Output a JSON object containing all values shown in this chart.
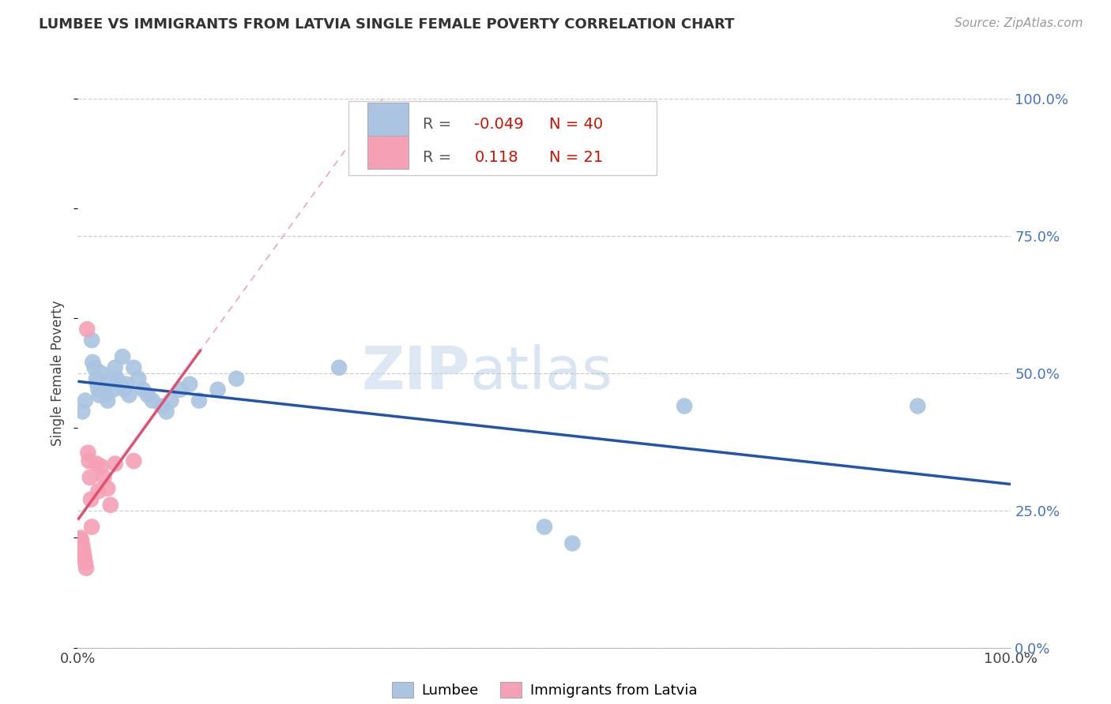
{
  "title": "LUMBEE VS IMMIGRANTS FROM LATVIA SINGLE FEMALE POVERTY CORRELATION CHART",
  "source": "Source: ZipAtlas.com",
  "ylabel": "Single Female Poverty",
  "xlim": [
    0.0,
    1.0
  ],
  "ylim": [
    0.0,
    1.0
  ],
  "ytick_labels": [
    "0.0%",
    "25.0%",
    "50.0%",
    "75.0%",
    "100.0%"
  ],
  "ytick_positions": [
    0.0,
    0.25,
    0.5,
    0.75,
    1.0
  ],
  "lumbee_color": "#aac4e2",
  "latvia_color": "#f5a0b5",
  "lumbee_line_color": "#2255aa",
  "latvia_line_color": "#e05070",
  "dashed_line_color": "#e898a8",
  "legend_R_lumbee": "-0.049",
  "legend_N_lumbee": "40",
  "legend_R_latvia": "0.118",
  "legend_N_latvia": "21",
  "watermark_zip": "ZIP",
  "watermark_atlas": "atlas",
  "lumbee_x": [
    0.005,
    0.008,
    0.015,
    0.016,
    0.018,
    0.02,
    0.021,
    0.022,
    0.023,
    0.025,
    0.028,
    0.03,
    0.032,
    0.035,
    0.038,
    0.04,
    0.042,
    0.045,
    0.048,
    0.05,
    0.052,
    0.055,
    0.06,
    0.065,
    0.07,
    0.075,
    0.08,
    0.09,
    0.095,
    0.1,
    0.11,
    0.12,
    0.13,
    0.15,
    0.17,
    0.28,
    0.5,
    0.53,
    0.65,
    0.9
  ],
  "lumbee_y": [
    0.43,
    0.45,
    0.56,
    0.52,
    0.51,
    0.49,
    0.48,
    0.47,
    0.46,
    0.5,
    0.47,
    0.46,
    0.45,
    0.49,
    0.47,
    0.51,
    0.49,
    0.48,
    0.53,
    0.47,
    0.48,
    0.46,
    0.51,
    0.49,
    0.47,
    0.46,
    0.45,
    0.44,
    0.43,
    0.45,
    0.47,
    0.48,
    0.45,
    0.47,
    0.49,
    0.51,
    0.22,
    0.19,
    0.44,
    0.44
  ],
  "latvia_x": [
    0.003,
    0.004,
    0.005,
    0.006,
    0.007,
    0.008,
    0.009,
    0.01,
    0.011,
    0.012,
    0.013,
    0.014,
    0.015,
    0.02,
    0.022,
    0.025,
    0.028,
    0.032,
    0.035,
    0.04,
    0.06
  ],
  "latvia_y": [
    0.2,
    0.195,
    0.185,
    0.175,
    0.165,
    0.155,
    0.145,
    0.58,
    0.355,
    0.34,
    0.31,
    0.27,
    0.22,
    0.335,
    0.285,
    0.33,
    0.31,
    0.29,
    0.26,
    0.335,
    0.34
  ]
}
